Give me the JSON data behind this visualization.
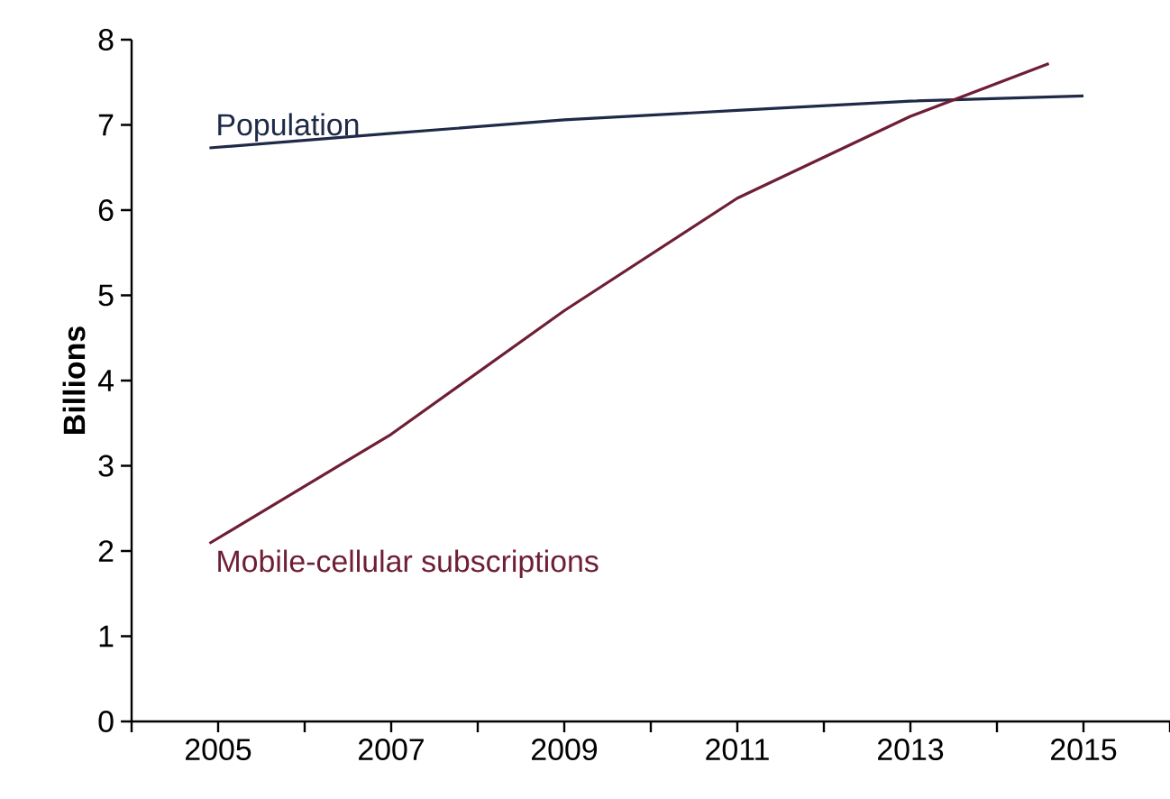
{
  "chart_data": {
    "type": "line",
    "ylabel": "Billions",
    "xlim": [
      2004,
      2016
    ],
    "xticks": [
      {
        "value": 2004,
        "label": null
      },
      2005,
      {
        "value": 2006,
        "label": null
      },
      2007,
      {
        "value": 2008,
        "label": null
      },
      2009,
      {
        "value": 2010,
        "label": null
      },
      2011,
      {
        "value": 2012,
        "label": null
      },
      2013,
      {
        "value": 2014,
        "label": null
      },
      2015,
      {
        "value": 2016,
        "label": null
      }
    ],
    "ylim": [
      0,
      8
    ],
    "yticks": [
      0,
      1,
      2,
      3,
      4,
      5,
      6,
      7,
      8
    ],
    "grid": false,
    "legend": false,
    "marker": "none",
    "line_style": "solid",
    "series": [
      {
        "name": "Population",
        "color": "#1f2a48",
        "x": [
          2004.9,
          2007,
          2009,
          2011,
          2013,
          2015
        ],
        "values": [
          6.73,
          6.9,
          7.06,
          7.17,
          7.28,
          7.34
        ]
      },
      {
        "name": "Mobile-cellular subscriptions",
        "color": "#6e1f35",
        "x": [
          2004.9,
          2007,
          2009,
          2010,
          2011,
          2012,
          2013,
          2014.6
        ],
        "values": [
          2.09,
          3.37,
          4.82,
          5.48,
          6.14,
          6.62,
          7.1,
          7.72
        ]
      }
    ]
  }
}
